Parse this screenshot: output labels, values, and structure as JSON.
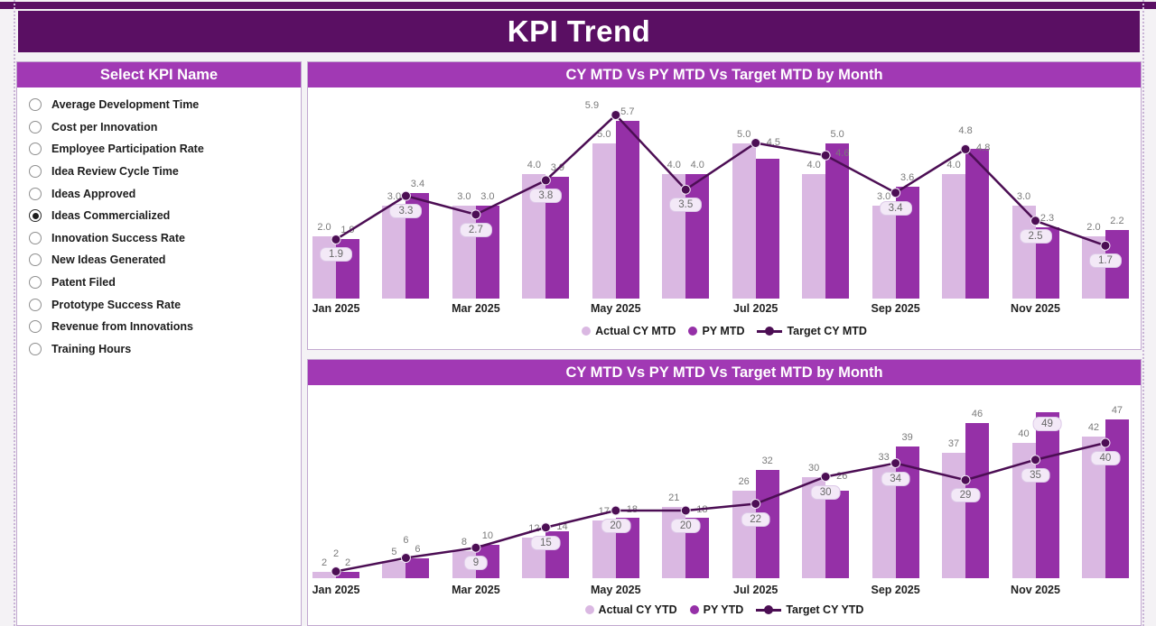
{
  "header": {
    "title": "KPI Trend"
  },
  "sidebar": {
    "title": "Select KPI Name",
    "items": [
      {
        "label": "Average Development Time",
        "selected": false
      },
      {
        "label": "Cost per Innovation",
        "selected": false
      },
      {
        "label": "Employee Participation Rate",
        "selected": false
      },
      {
        "label": "Idea Review Cycle Time",
        "selected": false
      },
      {
        "label": "Ideas Approved",
        "selected": false
      },
      {
        "label": "Ideas Commercialized",
        "selected": true
      },
      {
        "label": "Innovation Success Rate",
        "selected": false
      },
      {
        "label": "New Ideas Generated",
        "selected": false
      },
      {
        "label": "Patent Filed",
        "selected": false
      },
      {
        "label": "Prototype Success Rate",
        "selected": false
      },
      {
        "label": "Revenue from Innovations",
        "selected": false
      },
      {
        "label": "Training Hours",
        "selected": false
      }
    ]
  },
  "colors": {
    "banner": "#5a0f63",
    "section_header": "#a139b4",
    "actual_bar": "#dab8e2",
    "py_bar": "#9530a7",
    "target_line": "#4c0e54"
  },
  "chart_data": [
    {
      "type": "bar",
      "combo": "clustered-bars-with-line",
      "title": "CY MTD Vs PY MTD Vs Target MTD by Month",
      "categories": [
        "Jan 2025",
        "Feb 2025",
        "Mar 2025",
        "Apr 2025",
        "May 2025",
        "Jun 2025",
        "Jul 2025",
        "Aug 2025",
        "Sep 2025",
        "Oct 2025",
        "Nov 2025",
        "Dec 2025"
      ],
      "x_axis_ticks_shown": [
        "Jan 2025",
        "Mar 2025",
        "May 2025",
        "Jul 2025",
        "Sep 2025",
        "Nov 2025"
      ],
      "series": [
        {
          "name": "Actual CY MTD",
          "role": "bar-light",
          "values": [
            2.0,
            3.0,
            3.0,
            4.0,
            5.0,
            4.0,
            5.0,
            4.0,
            3.0,
            4.0,
            3.0,
            2.0
          ]
        },
        {
          "name": "PY MTD",
          "role": "bar-dark",
          "values": [
            1.9,
            3.4,
            3.0,
            3.9,
            5.7,
            4.0,
            4.5,
            5.0,
            3.6,
            4.8,
            2.3,
            2.2
          ]
        },
        {
          "name": "Target CY MTD",
          "role": "line",
          "values": [
            1.9,
            3.3,
            2.7,
            3.8,
            5.9,
            3.5,
            5.0,
            4.6,
            3.4,
            4.8,
            2.5,
            1.7
          ]
        }
      ],
      "decimals": 1,
      "ylim": [
        0,
        6.3
      ],
      "grid": false,
      "legend_position": "bottom",
      "label_hints": {
        "target": [
          "pill",
          "pill",
          "pill",
          "pill",
          "left",
          "pill",
          "hidden",
          "right",
          "pill",
          "above",
          "pill",
          "pill"
        ],
        "py": [
          "above",
          "above",
          "above",
          "above",
          "above",
          "above",
          "right",
          "above",
          "above",
          "right",
          "above",
          "above"
        ]
      }
    },
    {
      "type": "bar",
      "combo": "clustered-bars-with-line",
      "title": "CY MTD Vs PY MTD Vs Target MTD by Month",
      "categories": [
        "Jan 2025",
        "Feb 2025",
        "Mar 2025",
        "Apr 2025",
        "May 2025",
        "Jun 2025",
        "Jul 2025",
        "Aug 2025",
        "Sep 2025",
        "Oct 2025",
        "Nov 2025",
        "Dec 2025"
      ],
      "x_axis_ticks_shown": [
        "Jan 2025",
        "Mar 2025",
        "May 2025",
        "Jul 2025",
        "Sep 2025",
        "Nov 2025"
      ],
      "series": [
        {
          "name": "Actual CY YTD",
          "role": "bar-light",
          "values": [
            2,
            5,
            8,
            12,
            17,
            21,
            26,
            30,
            33,
            37,
            40,
            42
          ]
        },
        {
          "name": "PY YTD",
          "role": "bar-dark",
          "values": [
            2,
            6,
            10,
            14,
            18,
            18,
            32,
            26,
            39,
            46,
            49,
            47
          ]
        },
        {
          "name": "Target CY YTD",
          "role": "line",
          "values": [
            2,
            6,
            9,
            15,
            20,
            20,
            22,
            30,
            34,
            29,
            35,
            40
          ]
        }
      ],
      "decimals": 0,
      "ylim": [
        0,
        52
      ],
      "grid": false,
      "legend_position": "bottom",
      "label_hints": {
        "target": [
          "above",
          "above",
          "pill",
          "pill",
          "pill",
          "pill",
          "pill",
          "pill",
          "pill",
          "pill",
          "pill",
          "pill"
        ],
        "py": [
          "above",
          "above",
          "above",
          "right",
          "right",
          "right",
          "above",
          "right",
          "above",
          "above",
          "inside",
          "above"
        ]
      }
    }
  ]
}
